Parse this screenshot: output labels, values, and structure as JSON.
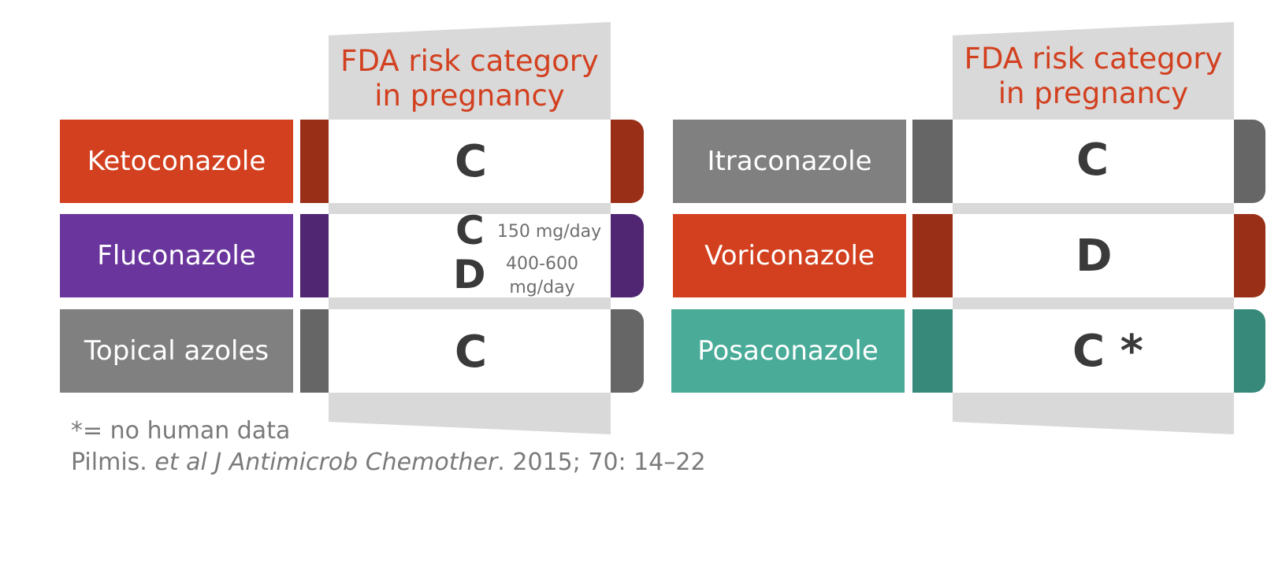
{
  "left": {
    "header": [
      "FDA risk category",
      "in pregnancy"
    ],
    "rows": [
      {
        "drug": "Ketoconazole",
        "grade": "C",
        "color": "#d2401f",
        "dark": "#9a2f17"
      },
      {
        "drug": "Fluconazole",
        "grade1": "C",
        "dose1": "150 mg/day",
        "grade2": "D",
        "dose2a": "400-600",
        "dose2b": "mg/day",
        "color": "#6a359c",
        "dark": "#502672"
      },
      {
        "drug": "Topical azoles",
        "grade": "C",
        "color": "#808080",
        "dark": "#666666"
      }
    ]
  },
  "right": {
    "header": [
      "FDA risk category",
      "in pregnancy"
    ],
    "rows": [
      {
        "drug": "Itraconazole",
        "grade": "C",
        "color": "#808080",
        "dark": "#666666"
      },
      {
        "drug": "Voriconazole",
        "grade": "D",
        "color": "#d2401f",
        "dark": "#9a2f17"
      },
      {
        "drug": "Posaconazole",
        "grade": "C *",
        "color": "#49ab98",
        "dark": "#37897a"
      }
    ]
  },
  "footnote": {
    "line1": "*= no human data",
    "ref_a": "Pilmis. ",
    "ref_b": "et al J Antimicrob Chemother",
    "ref_c": ". 2015; 70: 14–22"
  }
}
